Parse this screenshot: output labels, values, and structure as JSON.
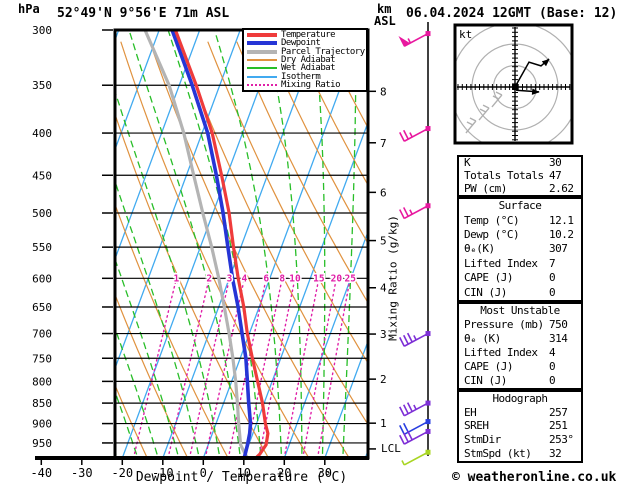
{
  "header": {
    "pressure_unit": "hPa",
    "station": "52°49'N 9°56'E 71m ASL",
    "datetime": "06.04.2024 12GMT (Base: 12)",
    "alt_unit_line1": "km",
    "alt_unit_line2": "ASL"
  },
  "legend": {
    "items": [
      {
        "label": "Temperature",
        "color": "#ef3b3b",
        "style": "solid-thick"
      },
      {
        "label": "Dewpoint",
        "color": "#2635d6",
        "style": "solid-thick"
      },
      {
        "label": "Parcel Trajectory",
        "color": "#b4b4b4",
        "style": "solid-thick"
      },
      {
        "label": "Dry Adiabat",
        "color": "#e0923f",
        "style": "solid-thin"
      },
      {
        "label": "Wet Adiabat",
        "color": "#28be28",
        "style": "solid-thin"
      },
      {
        "label": "Isotherm",
        "color": "#41aaf0",
        "style": "solid-thin"
      },
      {
        "label": "Mixing Ratio",
        "color": "#e020a8",
        "style": "dotted"
      }
    ]
  },
  "axes": {
    "pressure_ticks": [
      300,
      350,
      400,
      450,
      500,
      550,
      600,
      650,
      700,
      750,
      800,
      850,
      900,
      950
    ],
    "temp_ticks": [
      -40,
      -30,
      -20,
      -10,
      0,
      10,
      20,
      30
    ],
    "temp_axis_label": "Dewpoint / Temperature (°C)",
    "km_ticks": [
      {
        "label": "8",
        "p": 356
      },
      {
        "label": "7",
        "p": 411
      },
      {
        "label": "6",
        "p": 472
      },
      {
        "label": "5",
        "p": 540
      },
      {
        "label": "4",
        "p": 616
      },
      {
        "label": "3",
        "p": 701
      },
      {
        "label": "2",
        "p": 795
      },
      {
        "label": "1",
        "p": 899
      }
    ],
    "lcl": {
      "label": "LCL",
      "p": 966
    },
    "mixing_axis_label": "Mixing Ratio (g/kg)",
    "mixing_ratio_lines": [
      1,
      2,
      3,
      4,
      6,
      8,
      10,
      15,
      20,
      25
    ]
  },
  "chart_data": {
    "type": "skewt-logp-sounding",
    "title": "52°49'N 9°56'E 71m ASL",
    "pressure_range_hpa": [
      300,
      992
    ],
    "base_temp_range_c": [
      -21.8,
      40.7
    ],
    "isotherms_c": [
      -60,
      -50,
      -40,
      -30,
      -20,
      -10,
      0,
      10,
      20,
      30,
      40
    ],
    "dry_adiabats_theta_k": [
      250,
      260,
      270,
      280,
      290,
      300,
      310,
      320,
      330,
      340,
      350,
      360,
      370,
      380,
      390
    ],
    "wet_adiabats_thetaw_c": [
      -60,
      -55,
      -50,
      -45,
      -40,
      -35,
      -30,
      -25,
      -20,
      -15,
      -10,
      -5,
      0,
      5,
      10,
      15,
      20,
      25,
      30,
      35
    ],
    "series": {
      "temperature_p_t": [
        [
          1005,
          12.1
        ],
        [
          980,
          13.6
        ],
        [
          955,
          14.3
        ],
        [
          925,
          13.7
        ],
        [
          900,
          12.2
        ],
        [
          850,
          9.6
        ],
        [
          800,
          6.4
        ],
        [
          750,
          3.0
        ],
        [
          700,
          -0.5
        ],
        [
          650,
          -3.8
        ],
        [
          600,
          -7.8
        ],
        [
          550,
          -11.8
        ],
        [
          500,
          -16.0
        ],
        [
          450,
          -21.3
        ],
        [
          400,
          -27.5
        ],
        [
          350,
          -35.8
        ],
        [
          300,
          -46.0
        ]
      ],
      "dewpoint_p_t": [
        [
          1005,
          10.2
        ],
        [
          980,
          10.0
        ],
        [
          955,
          9.7
        ],
        [
          925,
          9.2
        ],
        [
          900,
          8.5
        ],
        [
          850,
          6.2
        ],
        [
          800,
          3.9
        ],
        [
          750,
          1.4
        ],
        [
          700,
          -1.8
        ],
        [
          650,
          -5.2
        ],
        [
          600,
          -9.2
        ],
        [
          550,
          -13.2
        ],
        [
          500,
          -17.5
        ],
        [
          450,
          -22.6
        ],
        [
          400,
          -28.6
        ],
        [
          350,
          -36.8
        ],
        [
          300,
          -46.8
        ]
      ],
      "parcel_p_t": [
        [
          1005,
          12.1
        ],
        [
          975,
          9.6
        ],
        [
          955,
          8.0
        ],
        [
          900,
          5.6
        ],
        [
          850,
          3.4
        ],
        [
          800,
          1.0
        ],
        [
          750,
          -1.8
        ],
        [
          700,
          -5.0
        ],
        [
          650,
          -8.6
        ],
        [
          600,
          -12.6
        ],
        [
          550,
          -17.2
        ],
        [
          500,
          -22.5
        ],
        [
          450,
          -28.2
        ],
        [
          400,
          -34.5
        ],
        [
          350,
          -42.5
        ],
        [
          300,
          -53.5
        ]
      ]
    },
    "wind_barbs": [
      {
        "p": 303,
        "speed_kt": 55,
        "color": "#e8189f"
      },
      {
        "p": 395,
        "speed_kt": 25,
        "color": "#e8189f"
      },
      {
        "p": 490,
        "speed_kt": 25,
        "color": "#e8189f"
      },
      {
        "p": 700,
        "speed_kt": 35,
        "color": "#7d2fd6"
      },
      {
        "p": 850,
        "speed_kt": 35,
        "color": "#7d2fd6"
      },
      {
        "p": 895,
        "speed_kt": 20,
        "color": "#2a3fe0"
      },
      {
        "p": 920,
        "speed_kt": 30,
        "color": "#7d2fd6"
      },
      {
        "p": 975,
        "speed_kt": 5,
        "color": "#a8d522"
      }
    ],
    "colors": {
      "temperature": "#ef3b3b",
      "dewpoint": "#2635d6",
      "parcel": "#b4b4b4",
      "dry_adiabat": "#e0923f",
      "wet_adiabat": "#28be28",
      "isotherm": "#41aaf0",
      "mixing_ratio": "#e020a8",
      "grid": "#000000"
    }
  },
  "hodograph": {
    "unit_label": "kt",
    "ring_radii_kt": [
      10,
      20,
      30
    ],
    "trace_upper_kt": [
      [
        0,
        0
      ],
      [
        6.5,
        11.6
      ],
      [
        12.1,
        9.8
      ],
      [
        15.8,
        13.0
      ]
    ],
    "trace_lower_kt": [
      [
        0.5,
        -1.5
      ],
      [
        11.2,
        -2.3
      ]
    ],
    "sr_barbs_kt": [
      [
        -8.4,
        -6.5
      ],
      [
        -14.4,
        -12.6
      ],
      [
        -20.5,
        -18.6
      ]
    ]
  },
  "panels": {
    "indices": {
      "rows": [
        {
          "label": "K",
          "value": "30"
        },
        {
          "label": "Totals Totals",
          "value": "47"
        },
        {
          "label": "PW (cm)",
          "value": "2.62"
        }
      ]
    },
    "surface": {
      "title": "Surface",
      "rows": [
        {
          "label": "Temp (°C)",
          "value": "12.1"
        },
        {
          "label": "Dewp (°C)",
          "value": "10.2"
        },
        {
          "label": "θₑ(K)",
          "value": "307"
        },
        {
          "label": "Lifted Index",
          "value": "7"
        },
        {
          "label": "CAPE (J)",
          "value": "0"
        },
        {
          "label": "CIN (J)",
          "value": "0"
        }
      ]
    },
    "most_unstable": {
      "title": "Most Unstable",
      "rows": [
        {
          "label": "Pressure (mb)",
          "value": "750"
        },
        {
          "label": "θₑ (K)",
          "value": "314"
        },
        {
          "label": "Lifted Index",
          "value": "4"
        },
        {
          "label": "CAPE (J)",
          "value": "0"
        },
        {
          "label": "CIN (J)",
          "value": "0"
        }
      ]
    },
    "hodograph_stats": {
      "title": "Hodograph",
      "rows": [
        {
          "label": "EH",
          "value": "257"
        },
        {
          "label": "SREH",
          "value": "251"
        },
        {
          "label": "StmDir",
          "value": "253°"
        },
        {
          "label": "StmSpd (kt)",
          "value": "32"
        }
      ]
    }
  },
  "footer": {
    "copyright": "© weatheronline.co.uk"
  }
}
